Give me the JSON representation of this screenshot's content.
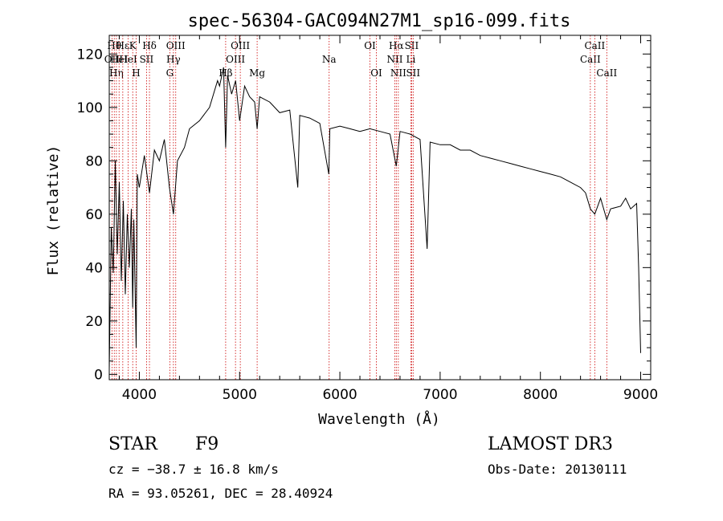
{
  "chart_data": {
    "type": "line",
    "title": "spec-56304-GAC094N27M1_sp16-099.fits",
    "xlabel": "Wavelength (Å)",
    "ylabel": "Flux (relative)",
    "xlim": [
      3700,
      9100
    ],
    "ylim": [
      -2,
      127
    ],
    "xticks": [
      4000,
      5000,
      6000,
      7000,
      8000,
      9000
    ],
    "yticks": [
      0,
      20,
      40,
      60,
      80,
      100,
      120
    ],
    "series": [
      {
        "x": [
          3700,
          3720,
          3740,
          3760,
          3780,
          3800,
          3820,
          3840,
          3860,
          3880,
          3900,
          3920,
          3934,
          3945,
          3968,
          3980,
          4000,
          4050,
          4101,
          4150,
          4200,
          4250,
          4300,
          4340,
          4380,
          4450,
          4500,
          4600,
          4700,
          4780,
          4800,
          4840,
          4861,
          4880,
          4920,
          4960,
          5000,
          5050,
          5100,
          5150,
          5175,
          5200,
          5300,
          5400,
          5500,
          5580,
          5600,
          5700,
          5800,
          5890,
          5900,
          6000,
          6100,
          6200,
          6300,
          6400,
          6500,
          6563,
          6600,
          6700,
          6800,
          6870,
          6900,
          7000,
          7100,
          7200,
          7300,
          7400,
          7500,
          7600,
          7700,
          7800,
          7900,
          8000,
          8100,
          8200,
          8300,
          8400,
          8450,
          8498,
          8542,
          8600,
          8662,
          8700,
          8800,
          8850,
          8900,
          8960,
          8980,
          9000
        ],
        "y": [
          2,
          55,
          38,
          80,
          45,
          72,
          35,
          65,
          30,
          60,
          40,
          62,
          25,
          58,
          10,
          75,
          70,
          82,
          68,
          84,
          80,
          88,
          70,
          60,
          80,
          85,
          92,
          95,
          100,
          110,
          108,
          115,
          85,
          112,
          105,
          110,
          95,
          108,
          104,
          102,
          92,
          104,
          102,
          98,
          99,
          70,
          97,
          96,
          94,
          75,
          92,
          93,
          92,
          91,
          92,
          91,
          90,
          78,
          91,
          90,
          88,
          47,
          87,
          86,
          86,
          84,
          84,
          82,
          81,
          80,
          79,
          78,
          77,
          76,
          75,
          74,
          72,
          70,
          68,
          62,
          60,
          66,
          58,
          62,
          63,
          66,
          62,
          64,
          40,
          8
        ]
      }
    ],
    "lines": [
      {
        "x": 3727,
        "label": "OII",
        "row": 1
      },
      {
        "x": 3750,
        "label": "Hθ",
        "row": 0
      },
      {
        "x": 3771,
        "label": "Hη",
        "row": 2
      },
      {
        "x": 3798,
        "label": "HeI",
        "row": 1
      },
      {
        "x": 3835,
        "label": "Hε",
        "row": 0
      },
      {
        "x": 3889,
        "label": "HeI",
        "row": 1
      },
      {
        "x": 3934,
        "label": "K",
        "row": 0
      },
      {
        "x": 3968,
        "label": "H",
        "row": 2
      },
      {
        "x": 4072,
        "label": "SII",
        "row": 1
      },
      {
        "x": 4101,
        "label": "Hδ",
        "row": 0
      },
      {
        "x": 4304,
        "label": "G",
        "row": 2
      },
      {
        "x": 4340,
        "label": "Hγ",
        "row": 1
      },
      {
        "x": 4363,
        "label": "OIII",
        "row": 0
      },
      {
        "x": 4861,
        "label": "Hβ",
        "row": 2
      },
      {
        "x": 4959,
        "label": "OIII",
        "row": 1
      },
      {
        "x": 5007,
        "label": "OIII",
        "row": 0
      },
      {
        "x": 5175,
        "label": "Mg",
        "row": 2
      },
      {
        "x": 5893,
        "label": "Na",
        "row": 1
      },
      {
        "x": 6300,
        "label": "OI",
        "row": 0
      },
      {
        "x": 6364,
        "label": "OI",
        "row": 2
      },
      {
        "x": 6548,
        "label": "NII",
        "row": 1
      },
      {
        "x": 6563,
        "label": "Hα",
        "row": 0
      },
      {
        "x": 6583,
        "label": "NII",
        "row": 2
      },
      {
        "x": 6708,
        "label": "Li",
        "row": 1
      },
      {
        "x": 6716,
        "label": "SII",
        "row": 0
      },
      {
        "x": 6731,
        "label": "SII",
        "row": 2
      },
      {
        "x": 8498,
        "label": "CaII",
        "row": 1
      },
      {
        "x": 8542,
        "label": "CaII",
        "row": 0
      },
      {
        "x": 8662,
        "label": "CaII",
        "row": 2
      }
    ],
    "line_color": "#cc0000",
    "grid": false,
    "legend": "none"
  },
  "info": {
    "object_class": "STAR",
    "subclass": "F9",
    "survey": "LAMOST DR3",
    "cz": "cz = −38.7 ± 16.8 km/s",
    "obs_date": "Obs-Date: 20130111",
    "coords": "RA =  93.05261, DEC =  28.40924"
  }
}
